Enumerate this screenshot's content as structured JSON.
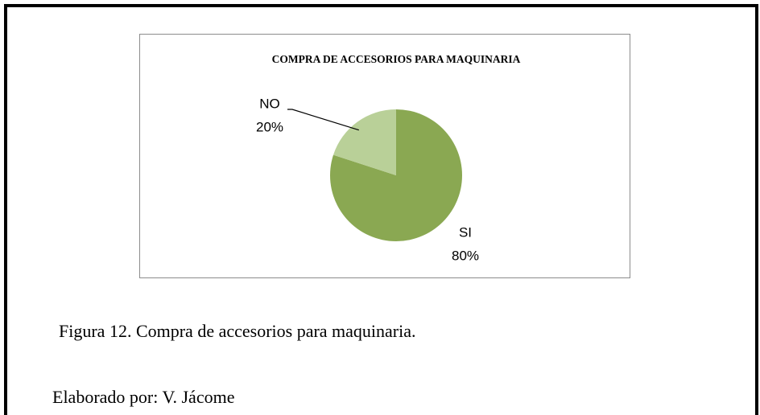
{
  "chart_data": {
    "type": "pie",
    "title": "COMPRA DE ACCESORIOS PARA MAQUINARIA",
    "categories": [
      "SI",
      "NO"
    ],
    "values": [
      80,
      20
    ],
    "value_labels": [
      "80%",
      "20%"
    ],
    "colors": [
      "#8aa852",
      "#b9d098"
    ]
  },
  "caption": "Figura 12. Compra de accesorios para maquinaria.",
  "credit": "Elaborado por: V. Jácome"
}
